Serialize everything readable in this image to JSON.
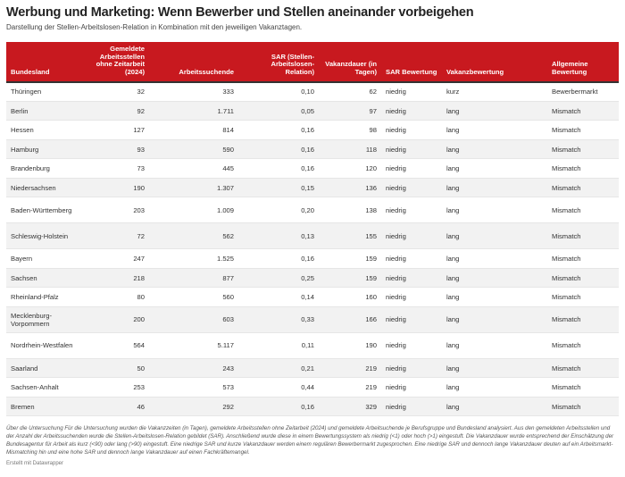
{
  "title": "Werbung und Marketing: Wenn Bewerber und Stellen aneinander vorbeigehen",
  "subtitle": "Darstellung der Stellen-Arbeitslosen-Relation in Kombination mit den jeweiligen Vakanztagen.",
  "columns": [
    "Bundesland",
    "Gemeldete Arbeitsstellen ohne Zeitarbeit (2024)",
    "Arbeitssuchende",
    "SAR (Stellen-Arbeitslosen-Relation)",
    "Vakanzdauer (in Tagen)",
    "SAR Bewertung",
    "Vakanzbewertung",
    "Allgemeine Bewertung"
  ],
  "rows": [
    [
      "Thüringen",
      "32",
      "333",
      "0,10",
      "62",
      "niedrig",
      "kurz",
      "Bewerbermarkt"
    ],
    [
      "Berlin",
      "92",
      "1.711",
      "0,05",
      "97",
      "niedrig",
      "lang",
      "Mismatch"
    ],
    [
      "Hessen",
      "127",
      "814",
      "0,16",
      "98",
      "niedrig",
      "lang",
      "Mismatch"
    ],
    [
      "Hamburg",
      "93",
      "590",
      "0,16",
      "118",
      "niedrig",
      "lang",
      "Mismatch"
    ],
    [
      "Brandenburg",
      "73",
      "445",
      "0,16",
      "120",
      "niedrig",
      "lang",
      "Mismatch"
    ],
    [
      "Niedersachsen",
      "190",
      "1.307",
      "0,15",
      "136",
      "niedrig",
      "lang",
      "Mismatch"
    ],
    [
      "Baden-Württemberg",
      "203",
      "1.009",
      "0,20",
      "138",
      "niedrig",
      "lang",
      "Mismatch"
    ],
    [
      "Schleswig-Holstein",
      "72",
      "562",
      "0,13",
      "155",
      "niedrig",
      "lang",
      "Mismatch"
    ],
    [
      "Bayern",
      "247",
      "1.525",
      "0,16",
      "159",
      "niedrig",
      "lang",
      "Mismatch"
    ],
    [
      "Sachsen",
      "218",
      "877",
      "0,25",
      "159",
      "niedrig",
      "lang",
      "Mismatch"
    ],
    [
      "Rheinland-Pfalz",
      "80",
      "560",
      "0,14",
      "160",
      "niedrig",
      "lang",
      "Mismatch"
    ],
    [
      "Mecklenburg-Vorpommern",
      "200",
      "603",
      "0,33",
      "166",
      "niedrig",
      "lang",
      "Mismatch"
    ],
    [
      "Nordrhein-Westfalen",
      "564",
      "5.117",
      "0,11",
      "190",
      "niedrig",
      "lang",
      "Mismatch"
    ],
    [
      "Saarland",
      "50",
      "243",
      "0,21",
      "219",
      "niedrig",
      "lang",
      "Mismatch"
    ],
    [
      "Sachsen-Anhalt",
      "253",
      "573",
      "0,44",
      "219",
      "niedrig",
      "lang",
      "Mismatch"
    ],
    [
      "Bremen",
      "46",
      "292",
      "0,16",
      "329",
      "niedrig",
      "lang",
      "Mismatch"
    ]
  ],
  "note": "Über die Untersuchung Für die Untersuchung wurden die Vakanzzeiten (in Tagen), gemeldete Arbeitsstellen ohne Zeitarbeit (2024) und gemeldete Arbeitsuchende je Berufsgruppe und Bundesland analysiert. Aus den gemeldeten Arbeitsstellen und der Anzahl der Arbeitssuchenden wurde die Stellen-Arbeitslosen-Relation gebildet (SAR). Anschließend wurde diese in einem Bewertungssystem als niedrig (<1) oder hoch (>1) eingestuft. Die Vakanzdauer wurde entsprechend der Einschätzung der Bundesagentur für Arbeit als kurz (<90) oder lang (>90) eingestuft. Eine niedrige SAR und kurze Vakanzdauer werden einem regulären Bewerbermarkt zugesprochen. Eine niedrige SAR und dennoch lange Vakanzdauer deuten auf ein Arbeitsmarkt-Mismatching hin und eine hohe SAR und dennoch lange Vakanzdauer auf einen Fachkräftemangel.",
  "credit": "Erstellt mit Datawrapper",
  "colors": {
    "header": "#c8191f"
  }
}
